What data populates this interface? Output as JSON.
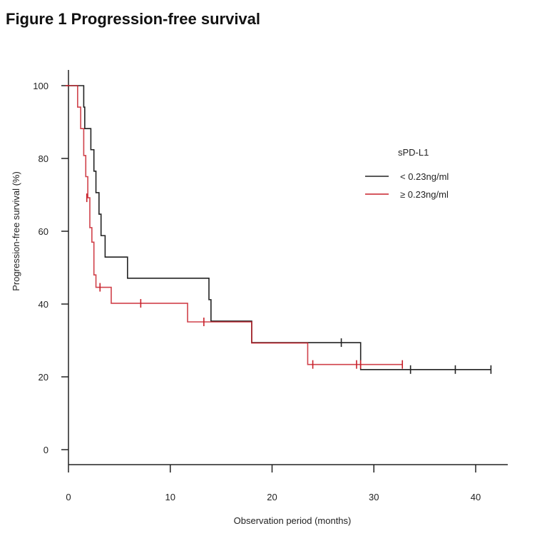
{
  "figure_title": "Figure 1 Progression-free survival",
  "chart_data": {
    "type": "line",
    "subtype": "kaplan-meier-step",
    "title": "Figure 1 Progression-free survival",
    "xlabel": "Observation period (months)",
    "ylabel": "Progression-free survival (%)",
    "xlim": [
      0,
      44
    ],
    "ylim": [
      0,
      100
    ],
    "xticks": [
      0,
      10,
      20,
      30,
      40
    ],
    "yticks": [
      0,
      20,
      40,
      60,
      80,
      100
    ],
    "grid": false,
    "legend": {
      "title": "sPD-L1",
      "position": "top-right",
      "entries": [
        {
          "label": "< 0.23ng/ml",
          "color": "#222222"
        },
        {
          "label": "≥ 0.23ng/ml",
          "color": "#c8202a"
        }
      ]
    },
    "series": [
      {
        "name": "< 0.23ng/ml",
        "color": "#222222",
        "steps": [
          [
            0,
            100
          ],
          [
            1.5,
            94.1
          ],
          [
            1.6,
            88.2
          ],
          [
            2.2,
            82.4
          ],
          [
            2.5,
            76.5
          ],
          [
            2.7,
            70.6
          ],
          [
            3.0,
            64.7
          ],
          [
            3.2,
            58.8
          ],
          [
            3.6,
            52.9
          ],
          [
            5.8,
            47.1
          ],
          [
            13.8,
            41.2
          ],
          [
            14.0,
            35.3
          ],
          [
            18.0,
            29.4
          ],
          [
            28.7,
            22.0
          ]
        ],
        "end_x": 41.5,
        "censored": [
          {
            "x": 26.8,
            "y": 29.4
          },
          {
            "x": 33.6,
            "y": 22.0
          },
          {
            "x": 38.0,
            "y": 22.0
          },
          {
            "x": 41.5,
            "y": 22.0
          }
        ]
      },
      {
        "name": "≥ 0.23ng/ml",
        "color": "#c8202a",
        "steps": [
          [
            0,
            100
          ],
          [
            0.9,
            94.1
          ],
          [
            1.2,
            88.2
          ],
          [
            1.5,
            80.8
          ],
          [
            1.7,
            75.0
          ],
          [
            1.9,
            69.2
          ],
          [
            2.1,
            61.0
          ],
          [
            2.3,
            57.0
          ],
          [
            2.5,
            48.0
          ],
          [
            2.7,
            44.6
          ],
          [
            4.2,
            40.2
          ],
          [
            11.7,
            35.1
          ],
          [
            18.0,
            29.3
          ],
          [
            23.5,
            23.4
          ]
        ],
        "end_x": 32.8,
        "censored": [
          {
            "x": 1.8,
            "y": 69.2
          },
          {
            "x": 3.1,
            "y": 44.6
          },
          {
            "x": 7.1,
            "y": 40.2
          },
          {
            "x": 13.3,
            "y": 35.1
          },
          {
            "x": 24.0,
            "y": 23.4
          },
          {
            "x": 28.3,
            "y": 23.4
          },
          {
            "x": 28.7,
            "y": 23.4
          },
          {
            "x": 32.8,
            "y": 23.4
          }
        ]
      }
    ]
  }
}
